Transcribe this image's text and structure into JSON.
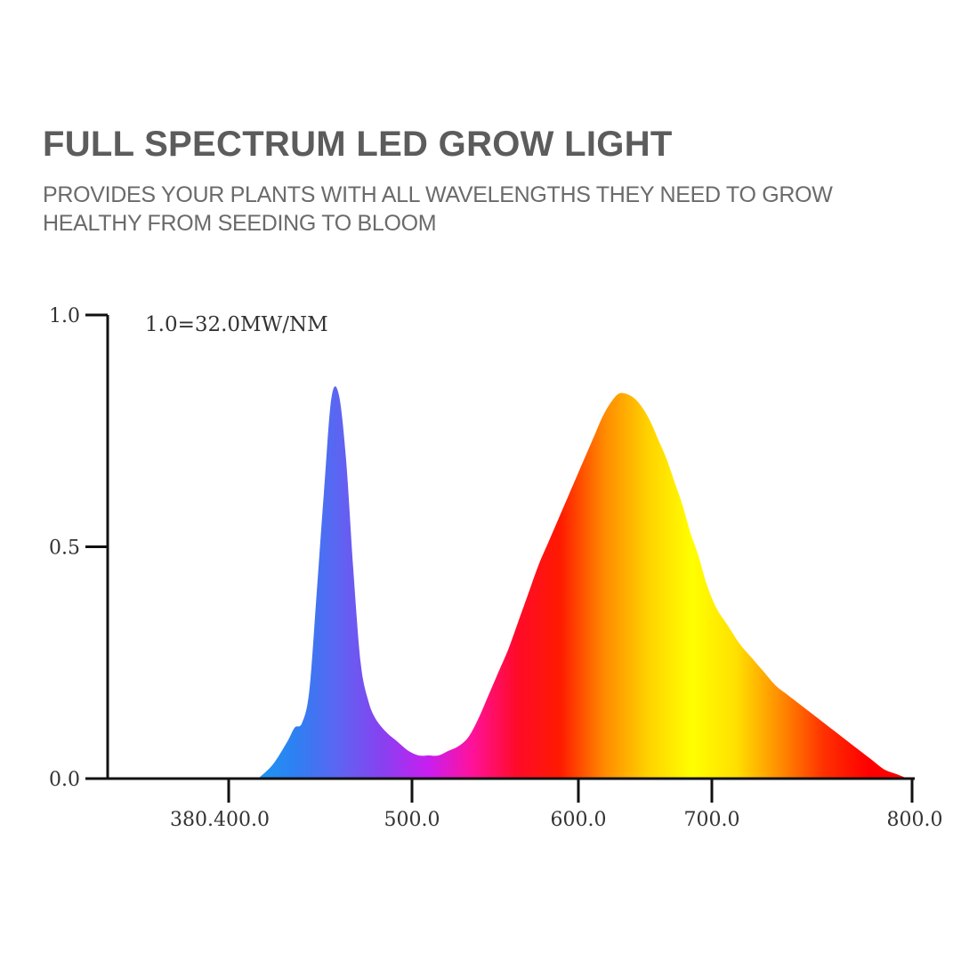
{
  "header": {
    "title": "FULL SPECTRUM LED GROW LIGHT",
    "subtitle": "PROVIDES YOUR PLANTS WITH ALL WAVELENGTHS THEY NEED TO GROW HEALTHY FROM SEEDING TO BLOOM"
  },
  "chart_data": {
    "type": "area",
    "title": "",
    "xlabel": "",
    "ylabel": "",
    "annotation": "1.0=32.0MW/NM",
    "xlim": [
      380,
      800
    ],
    "ylim": [
      0,
      1.0
    ],
    "grid": false,
    "y_ticks": [
      {
        "value": 1.0,
        "label": "1.0"
      },
      {
        "value": 0.5,
        "label": "0.5"
      },
      {
        "value": 0.0,
        "label": "0.0"
      }
    ],
    "x_ticks": [
      {
        "value": 400,
        "label": "380.400.0"
      },
      {
        "value": 500,
        "label": "500.0"
      },
      {
        "value": 600,
        "label": "600.0"
      },
      {
        "value": 700,
        "label": "700.0"
      },
      {
        "value": 800,
        "label": "800.0"
      }
    ],
    "series": [
      {
        "x": [
          416,
          424,
          432,
          436,
          440,
          444,
          448,
          452,
          456,
          460,
          464,
          468,
          472,
          476,
          480,
          486,
          492,
          498,
          504,
          510,
          516,
          522,
          528,
          534,
          540,
          546,
          552,
          558,
          564,
          570,
          576,
          582,
          588,
          594,
          600,
          606,
          612,
          618,
          624,
          630,
          636,
          642,
          648,
          654,
          660,
          666,
          672,
          678,
          684,
          690,
          696,
          702,
          708,
          714,
          720,
          726,
          732,
          738,
          744,
          750,
          756,
          762,
          768,
          774,
          780,
          786,
          792,
          798,
          800
        ],
        "y": [
          0.0,
          0.03,
          0.08,
          0.11,
          0.12,
          0.19,
          0.4,
          0.62,
          0.82,
          0.83,
          0.69,
          0.45,
          0.25,
          0.17,
          0.13,
          0.1,
          0.08,
          0.06,
          0.05,
          0.05,
          0.05,
          0.06,
          0.07,
          0.09,
          0.13,
          0.18,
          0.23,
          0.28,
          0.34,
          0.4,
          0.46,
          0.51,
          0.56,
          0.61,
          0.66,
          0.7,
          0.74,
          0.78,
          0.81,
          0.83,
          0.83,
          0.82,
          0.8,
          0.77,
          0.73,
          0.69,
          0.64,
          0.59,
          0.53,
          0.48,
          0.42,
          0.37,
          0.33,
          0.29,
          0.26,
          0.23,
          0.2,
          0.18,
          0.16,
          0.14,
          0.12,
          0.1,
          0.08,
          0.06,
          0.04,
          0.02,
          0.01,
          0.0,
          0.0
        ]
      }
    ],
    "gradient_colors": [
      "#00ffee",
      "#17c7ef",
      "#1a9af0",
      "#2f7ff2",
      "#5f63f2",
      "#8a3ff0",
      "#c81ef0",
      "#ff1299",
      "#ff0a2a",
      "#ff1a00",
      "#ff8a00",
      "#ffd200",
      "#ffff00",
      "#ffe000",
      "#ff8c00",
      "#ff3000",
      "#ff0000",
      "#ff0000"
    ],
    "axis_color": "#111111"
  }
}
